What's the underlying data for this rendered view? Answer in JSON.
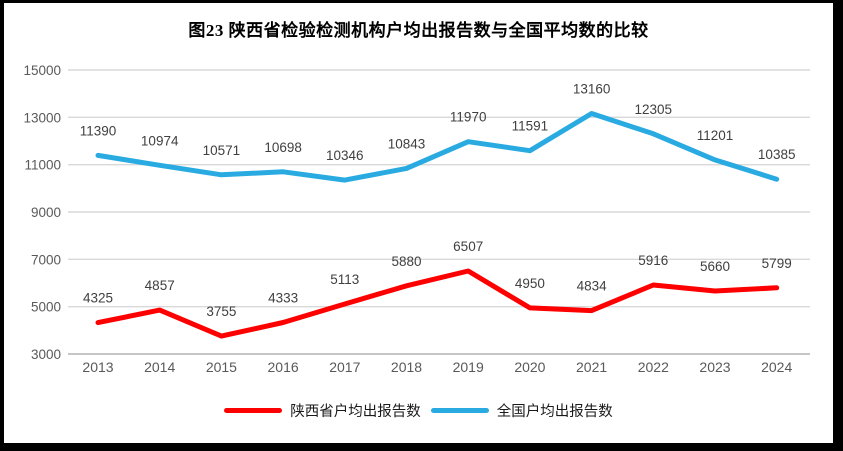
{
  "chart_data": {
    "type": "line",
    "title": "图23 陕西省检验检测机构户均出报告数与全国平均数的比较",
    "categories": [
      "2013",
      "2014",
      "2015",
      "2016",
      "2017",
      "2018",
      "2019",
      "2020",
      "2021",
      "2022",
      "2023",
      "2024"
    ],
    "series": [
      {
        "name": "陕西省户均出报告数",
        "color": "#FF0000",
        "values": [
          4325,
          4857,
          3755,
          4333,
          5113,
          5880,
          6507,
          4950,
          4834,
          5916,
          5660,
          5799
        ]
      },
      {
        "name": "全国户均出报告数",
        "color": "#29ABE2",
        "values": [
          11390,
          10974,
          10571,
          10698,
          10346,
          10843,
          11970,
          11591,
          13160,
          12305,
          11201,
          10385
        ]
      }
    ],
    "ylim": [
      3000,
      15000
    ],
    "yticks": [
      3000,
      5000,
      7000,
      9000,
      11000,
      13000,
      15000
    ],
    "grid": true,
    "legend_position": "bottom",
    "colors": {
      "gridline": "#D9D9D9",
      "axis_line": "#C6C6C6",
      "tick_label": "#595959",
      "data_label": "#404040",
      "frame_border": "#000000"
    }
  }
}
